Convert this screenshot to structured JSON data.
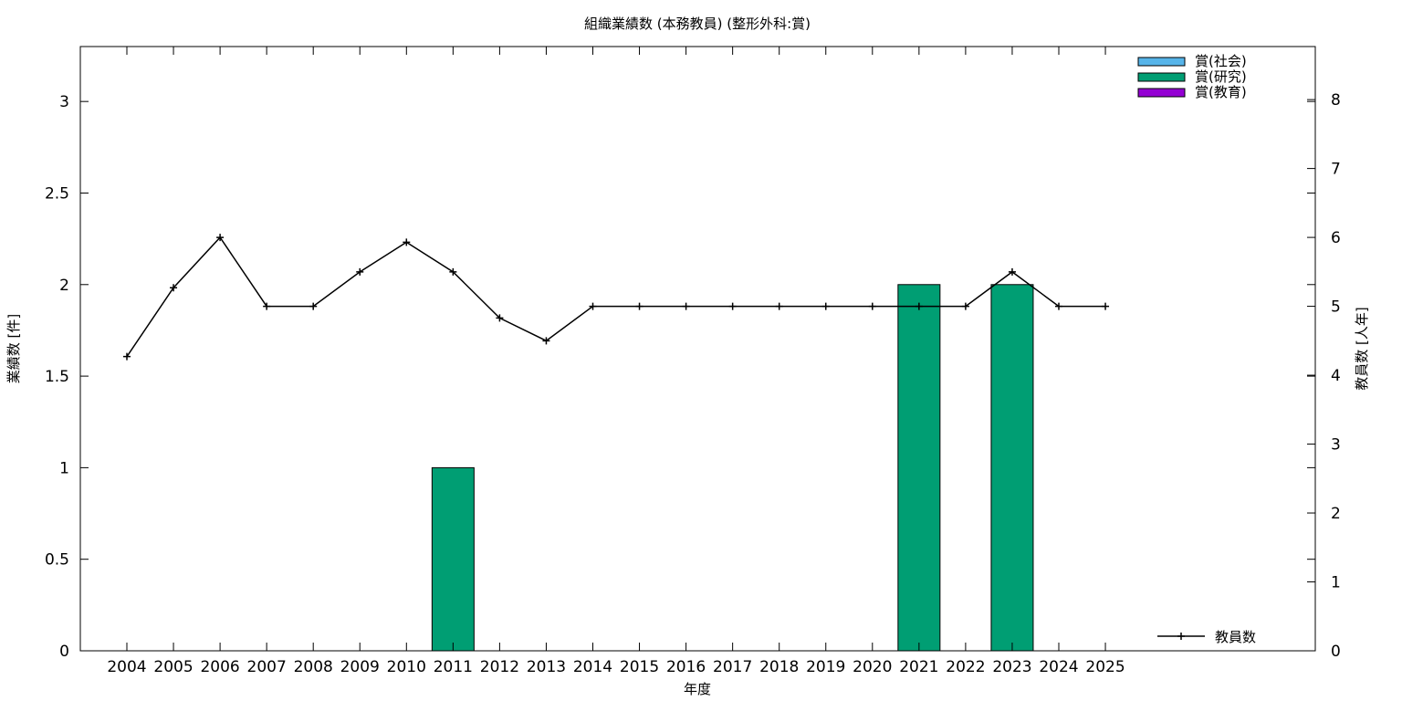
{
  "chart_data": {
    "type": "bar",
    "title": "組織業績数 (本務教員) (整形外科:賞)",
    "xlabel": "年度",
    "ylabel": "業績数 [件]",
    "y2label": "教員数 [人年]",
    "categories": [
      "2004",
      "2005",
      "2006",
      "2007",
      "2008",
      "2009",
      "2010",
      "2011",
      "2012",
      "2013",
      "2014",
      "2015",
      "2016",
      "2017",
      "2018",
      "2019",
      "2020",
      "2021",
      "2022",
      "2023",
      "2024",
      "2025"
    ],
    "ylim": [
      0,
      3.3
    ],
    "y2lim": [
      0,
      8.77
    ],
    "yticks": [
      "0",
      "0.5",
      "1",
      "1.5",
      "2",
      "2.5",
      "3"
    ],
    "y2ticks": [
      "0",
      "1",
      "2",
      "3",
      "4",
      "5",
      "6",
      "7",
      "8"
    ],
    "grid": false,
    "legend_position": "top-right",
    "series": [
      {
        "name": "賞(社会)",
        "color": "#56b4e9",
        "values": [
          0,
          0,
          0,
          0,
          0,
          0,
          0,
          0,
          0,
          0,
          0,
          0,
          0,
          0,
          0,
          0,
          0,
          0,
          0,
          0,
          0,
          0
        ]
      },
      {
        "name": "賞(研究)",
        "color": "#009e73",
        "values": [
          0,
          0,
          0,
          0,
          0,
          0,
          0,
          1,
          0,
          0,
          0,
          0,
          0,
          0,
          0,
          0,
          0,
          2,
          0,
          2,
          0,
          0
        ]
      },
      {
        "name": "賞(教育)",
        "color": "#9400d3",
        "values": [
          0,
          0,
          0,
          0,
          0,
          0,
          0,
          0,
          0,
          0,
          0,
          0,
          0,
          0,
          0,
          0,
          0,
          0,
          0,
          0,
          0,
          0
        ]
      }
    ],
    "line_series": {
      "name": "教員数",
      "color": "#000000",
      "axis": "right",
      "legend_position": "bottom-right",
      "values": [
        4.27,
        5.27,
        6.0,
        5.0,
        5.0,
        5.5,
        5.93,
        5.5,
        4.83,
        4.5,
        5.0,
        5.0,
        5.0,
        5.0,
        5.0,
        5.0,
        5.0,
        5.0,
        5.0,
        5.5,
        5.0,
        5.0
      ]
    }
  }
}
